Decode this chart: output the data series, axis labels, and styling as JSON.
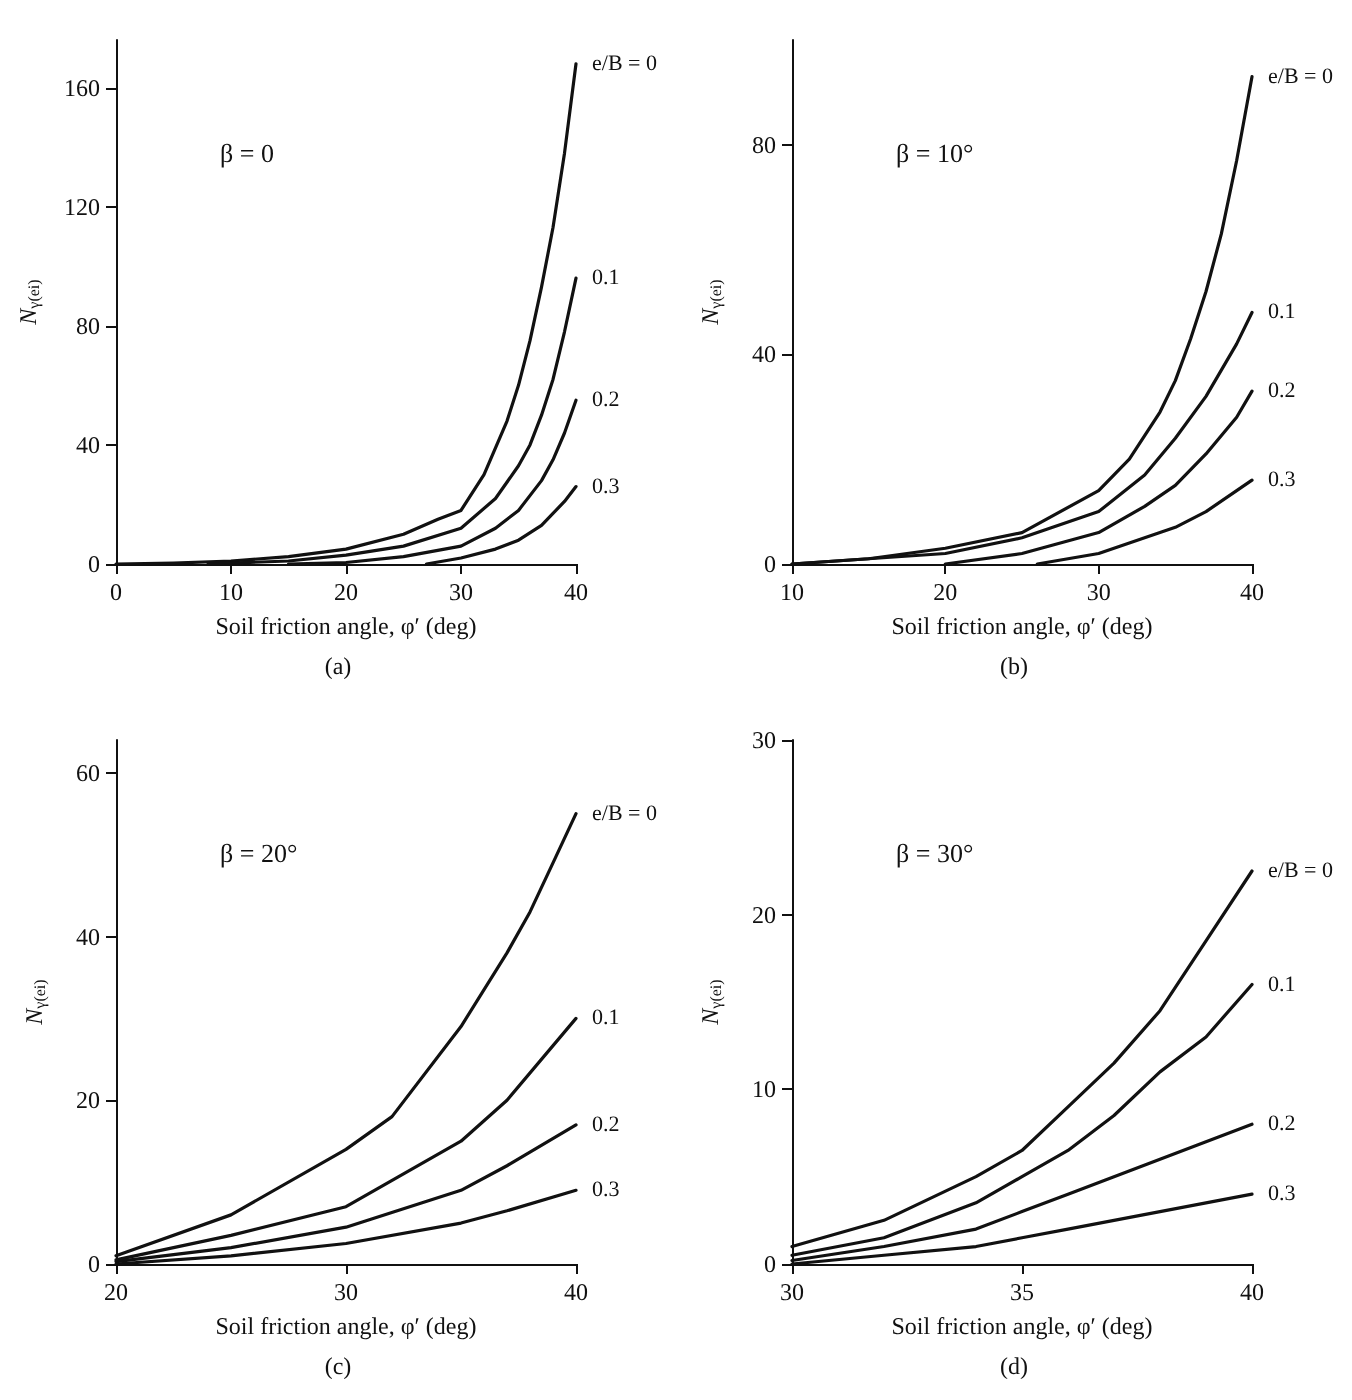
{
  "chart_data": [
    {
      "type": "line",
      "title": "(a)",
      "annotations": [
        "β = 0"
      ],
      "xlabel": "Soil friction angle, φ′ (deg)",
      "ylabel": "N$_{γ(ei)}$",
      "xlim": [
        0,
        40
      ],
      "xticks": [
        0,
        10,
        20,
        30,
        40
      ],
      "ylim": [
        0,
        176
      ],
      "yticks": [
        0,
        40,
        80,
        120,
        160
      ],
      "legend": false,
      "grid": false,
      "marker": "none",
      "series": [
        {
          "name": "e/B = 0",
          "color": "#111111",
          "x": [
            0,
            5,
            10,
            15,
            20,
            25,
            28,
            30,
            32,
            34,
            35,
            36,
            37,
            38,
            39,
            40
          ],
          "values": [
            0,
            0.3,
            1,
            2.5,
            5,
            10,
            15,
            18,
            30,
            48,
            60,
            75,
            93,
            113,
            138,
            168
          ]
        },
        {
          "name": "0.1",
          "color": "#111111",
          "x": [
            8,
            10,
            15,
            20,
            25,
            30,
            33,
            35,
            36,
            37,
            38,
            39,
            40
          ],
          "values": [
            0,
            0.3,
            1,
            3,
            6,
            12,
            22,
            33,
            40,
            50,
            62,
            78,
            96
          ]
        },
        {
          "name": "0.2",
          "color": "#111111",
          "x": [
            15,
            20,
            25,
            30,
            33,
            35,
            37,
            38,
            39,
            40
          ],
          "values": [
            0,
            0.5,
            2.5,
            6,
            12,
            18,
            28,
            35,
            44,
            55
          ]
        },
        {
          "name": "0.3",
          "color": "#111111",
          "x": [
            27,
            30,
            33,
            35,
            37,
            38,
            39,
            40
          ],
          "values": [
            0,
            2,
            5,
            8,
            13,
            17,
            21,
            26
          ]
        }
      ]
    },
    {
      "type": "line",
      "title": "(b)",
      "annotations": [
        "β = 10°"
      ],
      "xlabel": "Soil friction angle, φ′ (deg)",
      "ylabel": "N$_{γ(ei)}$",
      "xlim": [
        10,
        40
      ],
      "xticks": [
        10,
        20,
        30,
        40
      ],
      "ylim": [
        0,
        100
      ],
      "yticks": [
        0,
        40,
        80
      ],
      "legend": false,
      "grid": false,
      "marker": "none",
      "series": [
        {
          "name": "e/B = 0",
          "color": "#111111",
          "x": [
            10,
            15,
            20,
            25,
            30,
            32,
            34,
            35,
            36,
            37,
            38,
            39,
            40
          ],
          "values": [
            0,
            1,
            3,
            6,
            14,
            20,
            29,
            35,
            43,
            52,
            63,
            77,
            93
          ]
        },
        {
          "name": "0.1",
          "color": "#111111",
          "x": [
            10,
            20,
            25,
            30,
            33,
            35,
            37,
            38,
            39,
            40
          ],
          "values": [
            0,
            2,
            5,
            10,
            17,
            24,
            32,
            37,
            42,
            48
          ]
        },
        {
          "name": "0.2",
          "color": "#111111",
          "x": [
            20,
            25,
            30,
            33,
            35,
            37,
            39,
            40
          ],
          "values": [
            0,
            2,
            6,
            11,
            15,
            21,
            28,
            33
          ]
        },
        {
          "name": "0.3",
          "color": "#111111",
          "x": [
            26,
            30,
            33,
            35,
            37,
            39,
            40
          ],
          "values": [
            0,
            2,
            5,
            7,
            10,
            14,
            16
          ]
        }
      ]
    },
    {
      "type": "line",
      "title": "(c)",
      "annotations": [
        "β = 20°"
      ],
      "xlabel": "Soil friction angle, φ′ (deg)",
      "ylabel": "N$_{γ(ei)}$",
      "xlim": [
        20,
        40
      ],
      "xticks": [
        20,
        30,
        40
      ],
      "ylim": [
        0,
        64
      ],
      "yticks": [
        0,
        20,
        40,
        60
      ],
      "legend": false,
      "grid": false,
      "marker": "none",
      "series": [
        {
          "name": "e/B = 0",
          "color": "#111111",
          "x": [
            20,
            25,
            30,
            32,
            35,
            37,
            38,
            39,
            40
          ],
          "values": [
            1,
            6,
            14,
            18,
            29,
            38,
            43,
            49,
            55
          ]
        },
        {
          "name": "0.1",
          "color": "#111111",
          "x": [
            20,
            25,
            30,
            35,
            37,
            40
          ],
          "values": [
            0.5,
            3.5,
            7,
            15,
            20,
            30
          ]
        },
        {
          "name": "0.2",
          "color": "#111111",
          "x": [
            20,
            25,
            30,
            35,
            37,
            40
          ],
          "values": [
            0.3,
            2,
            4.5,
            9,
            12,
            17
          ]
        },
        {
          "name": "0.3",
          "color": "#111111",
          "x": [
            20,
            25,
            30,
            35,
            37,
            40
          ],
          "values": [
            0,
            1,
            2.5,
            5,
            6.5,
            9
          ]
        }
      ]
    },
    {
      "type": "line",
      "title": "(d)",
      "annotations": [
        "β = 30°"
      ],
      "xlabel": "Soil friction angle, φ′ (deg)",
      "ylabel": "N$_{γ(ei)}$",
      "xlim": [
        30,
        40
      ],
      "xticks": [
        30,
        35,
        40
      ],
      "ylim": [
        0,
        30
      ],
      "yticks": [
        0,
        10,
        20,
        30
      ],
      "legend": false,
      "grid": false,
      "marker": "none",
      "series": [
        {
          "name": "e/B = 0",
          "color": "#111111",
          "x": [
            30,
            32,
            34,
            35,
            36,
            37,
            38,
            39,
            40
          ],
          "values": [
            1,
            2.5,
            5,
            6.5,
            9,
            11.5,
            14.5,
            18.5,
            22.5
          ]
        },
        {
          "name": "0.1",
          "color": "#111111",
          "x": [
            30,
            32,
            34,
            35,
            36,
            37,
            38,
            39,
            40
          ],
          "values": [
            0.5,
            1.5,
            3.5,
            5,
            6.5,
            8.5,
            11,
            13,
            16
          ]
        },
        {
          "name": "0.2",
          "color": "#111111",
          "x": [
            30,
            32,
            34,
            35,
            36,
            37,
            38,
            39,
            40
          ],
          "values": [
            0.2,
            1,
            2,
            3,
            4,
            5,
            6,
            7,
            8
          ]
        },
        {
          "name": "0.3",
          "color": "#111111",
          "x": [
            30,
            32,
            34,
            35,
            36,
            38,
            40
          ],
          "values": [
            0,
            0.5,
            1,
            1.5,
            2,
            3,
            4
          ]
        }
      ]
    }
  ]
}
